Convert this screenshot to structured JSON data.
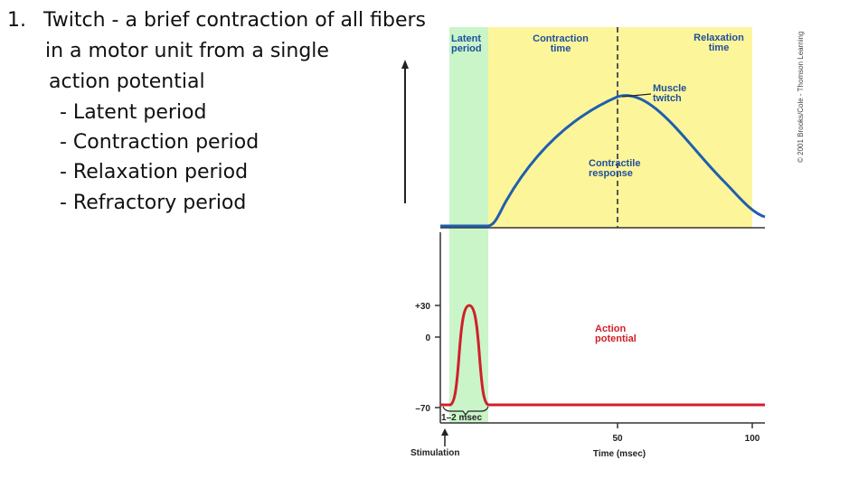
{
  "slide": {
    "number": "1.",
    "heading": "Twitch - a brief contraction of all fibers",
    "heading_cont": "in a motor unit from a single",
    "heading_cont2": "action potential",
    "bullets": [
      "- Latent period",
      "- Contraction period",
      "- Relaxation period",
      "- Refractory period"
    ]
  },
  "diagram": {
    "phases": {
      "latent": [
        "Latent",
        "period"
      ],
      "contraction": [
        "Contraction",
        "time"
      ],
      "relaxation": [
        "Relaxation",
        "time"
      ]
    },
    "muscle_twitch_label": [
      "Muscle",
      "twitch"
    ],
    "contractile_label": [
      "Contractile",
      "response"
    ],
    "action_potential_label": [
      "Action",
      "potential"
    ],
    "y_ticks": [
      "+30",
      "0",
      "–70"
    ],
    "x_ticks": [
      "50",
      "100"
    ],
    "duration_label": "1–2 msec",
    "stimulation_label": "Stimulation",
    "x_axis_label": "Time (msec)",
    "copyright": "© 2001 Brooks/Cole - Thomson Learning",
    "colors": {
      "latent_fill": "#c9f5c9",
      "contraction_fill": "#fdf59a",
      "twitch_line": "#1f5fae",
      "ap_line": "#d0202a",
      "label_blue": "#1f4f9e",
      "label_red": "#d0202a"
    }
  }
}
